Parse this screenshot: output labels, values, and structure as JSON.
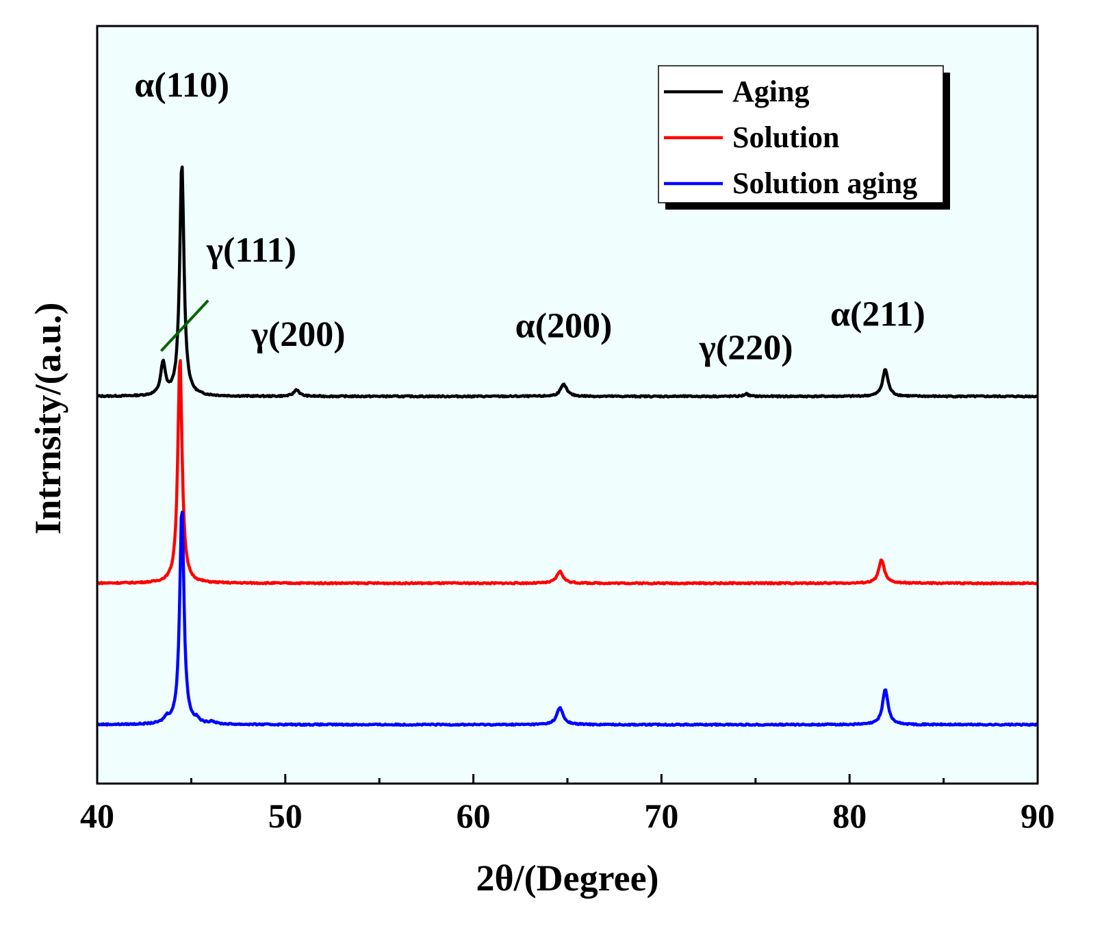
{
  "chart_data": {
    "type": "line",
    "title": "",
    "xlabel": "2θ/(Degree)",
    "ylabel": "Intrnsity/(a.u.)",
    "xlim": [
      40,
      90
    ],
    "ylim": [
      -0.3,
      4.2
    ],
    "xticks": [
      40,
      50,
      60,
      70,
      80,
      90
    ],
    "xtick_labels": [
      "40",
      "50",
      "60",
      "70",
      "80",
      "90"
    ],
    "plot_background": "#f0fffe",
    "grid": false,
    "legend_position": "top-right",
    "series": [
      {
        "name": "Aging",
        "color": "#000000",
        "offset": 2.0,
        "peaks": [
          {
            "center": 43.5,
            "height": 0.19,
            "width": 0.22
          },
          {
            "center": 44.5,
            "height": 1.39,
            "width": 0.2
          },
          {
            "center": 50.6,
            "height": 0.04,
            "width": 0.25
          },
          {
            "center": 64.8,
            "height": 0.07,
            "width": 0.3
          },
          {
            "center": 74.5,
            "height": 0.015,
            "width": 0.2
          },
          {
            "center": 81.9,
            "height": 0.16,
            "width": 0.26
          }
        ]
      },
      {
        "name": "Solution",
        "color": "#ff0000",
        "offset": 0.89,
        "peaks": [
          {
            "center": 44.4,
            "height": 1.35,
            "width": 0.2
          },
          {
            "center": 64.6,
            "height": 0.07,
            "width": 0.3
          },
          {
            "center": 81.7,
            "height": 0.14,
            "width": 0.26
          }
        ]
      },
      {
        "name": "Solution aging",
        "color": "#0000ff",
        "offset": 0.05,
        "peaks": [
          {
            "center": 43.7,
            "height": 0.03,
            "width": 0.25
          },
          {
            "center": 44.5,
            "height": 1.29,
            "width": 0.2
          },
          {
            "center": 45.3,
            "height": 0.02,
            "width": 0.2
          },
          {
            "center": 46.1,
            "height": 0.015,
            "width": 0.25
          },
          {
            "center": 64.6,
            "height": 0.1,
            "width": 0.3
          },
          {
            "center": 81.9,
            "height": 0.21,
            "width": 0.26
          }
        ]
      }
    ],
    "annotations": [
      {
        "text": "α(110)",
        "x": 44.5,
        "y": 3.78
      },
      {
        "text": "γ(111)",
        "x": 48.2,
        "y": 2.8
      },
      {
        "text": "γ(200)",
        "x": 50.7,
        "y": 2.3
      },
      {
        "text": "α(200)",
        "x": 64.8,
        "y": 2.35
      },
      {
        "text": "γ(220)",
        "x": 74.5,
        "y": 2.22
      },
      {
        "text": "α(211)",
        "x": 81.5,
        "y": 2.42
      }
    ],
    "annotation_line": {
      "x1": 43.4,
      "y1": 2.27,
      "x2": 45.9,
      "y2": 2.57,
      "color": "#006400"
    }
  }
}
